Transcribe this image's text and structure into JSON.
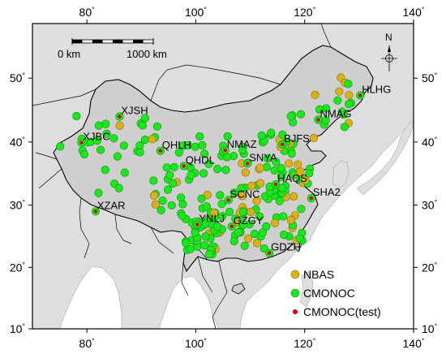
{
  "colors": {
    "ocean": "#ffffff",
    "land": "#dedede",
    "china": "#cfcfcf",
    "border": "#000000",
    "nbas": "#d8b21e",
    "cmonoc": "#1ee61e",
    "test": "#d40000"
  },
  "axes": {
    "lon_ticks": [
      "80",
      "100",
      "120",
      "140"
    ],
    "lat_ticks": [
      "10",
      "20",
      "30",
      "40",
      "50"
    ],
    "top_lon_ticks": [
      "80",
      "100",
      "120",
      "140"
    ],
    "degree_symbol": "°"
  },
  "scalebar": {
    "left_label": "0 km",
    "right_label": "1000 km"
  },
  "north_arrow": {
    "label": "N"
  },
  "legend": [
    {
      "label": "NBAS",
      "marker": "nbas"
    },
    {
      "label": "CMONOC",
      "marker": "cmonoc"
    },
    {
      "label": "CMONOC(test)",
      "marker": "test"
    }
  ],
  "test_stations": [
    {
      "code": "HLHG",
      "lon": 130.2,
      "lat": 47.3
    },
    {
      "code": "XJSH",
      "lon": 86.0,
      "lat": 44.0
    },
    {
      "code": "NMAG",
      "lon": 122.5,
      "lat": 43.5
    },
    {
      "code": "XJBC",
      "lon": 79.0,
      "lat": 39.9
    },
    {
      "code": "QHLH",
      "lon": 93.5,
      "lat": 38.6
    },
    {
      "code": "NMAZ",
      "lon": 105.4,
      "lat": 38.7
    },
    {
      "code": "BJFS",
      "lon": 115.9,
      "lat": 39.6
    },
    {
      "code": "QHDL",
      "lon": 97.8,
      "lat": 36.2
    },
    {
      "code": "SNYA",
      "lon": 109.5,
      "lat": 36.6
    },
    {
      "code": "HAQS",
      "lon": 114.7,
      "lat": 33.3
    },
    {
      "code": "SCNC",
      "lon": 106.0,
      "lat": 30.8
    },
    {
      "code": "SHA2",
      "lon": 121.2,
      "lat": 31.1
    },
    {
      "code": "XZAR",
      "lon": 81.6,
      "lat": 29.0
    },
    {
      "code": "YNLJ",
      "lon": 100.3,
      "lat": 26.9
    },
    {
      "code": "GZGY",
      "lon": 106.6,
      "lat": 26.6
    },
    {
      "code": "GDZH",
      "lon": 113.5,
      "lat": 22.3
    }
  ]
}
